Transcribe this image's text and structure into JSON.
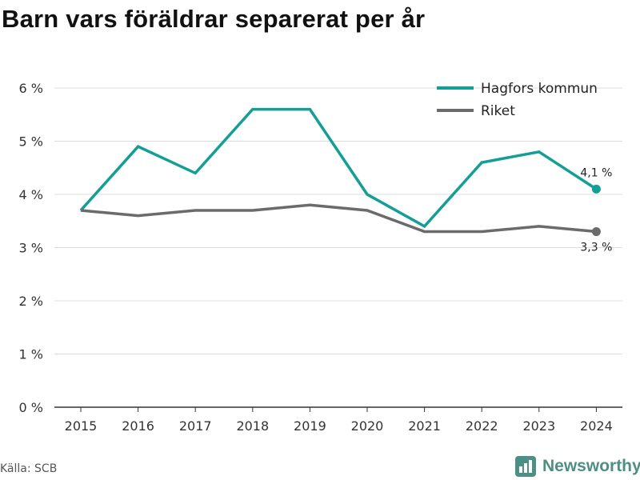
{
  "title": "Barn vars föräldrar separerat per år",
  "source": "Källa: SCB",
  "brand": {
    "name": "Newsworthy",
    "icon": "newsworthy-logo-icon"
  },
  "colors": {
    "hagfors": "#139e96",
    "riket": "#6b6b6b",
    "grid": "#dcdcdc",
    "brand": "#4d8f86"
  },
  "chart_data": {
    "type": "line",
    "title": "Barn vars föräldrar separerat per år",
    "x": [
      "2015",
      "2016",
      "2017",
      "2018",
      "2019",
      "2020",
      "2021",
      "2022",
      "2023",
      "2024"
    ],
    "ylim": [
      0,
      6
    ],
    "yticks": [
      "0 %",
      "1 %",
      "2 %",
      "3 %",
      "4 %",
      "5 %",
      "6 %"
    ],
    "grid": true,
    "legend": "top-right",
    "series": [
      {
        "name": "Hagfors kommun",
        "color": "#139e96",
        "values": [
          3.7,
          4.9,
          4.4,
          5.6,
          5.6,
          4.0,
          3.4,
          4.6,
          4.8,
          4.1
        ],
        "end_label": "4,1 %"
      },
      {
        "name": "Riket",
        "color": "#6b6b6b",
        "values": [
          3.7,
          3.6,
          3.7,
          3.7,
          3.8,
          3.7,
          3.3,
          3.3,
          3.4,
          3.3
        ],
        "end_label": "3,3 %"
      }
    ]
  }
}
